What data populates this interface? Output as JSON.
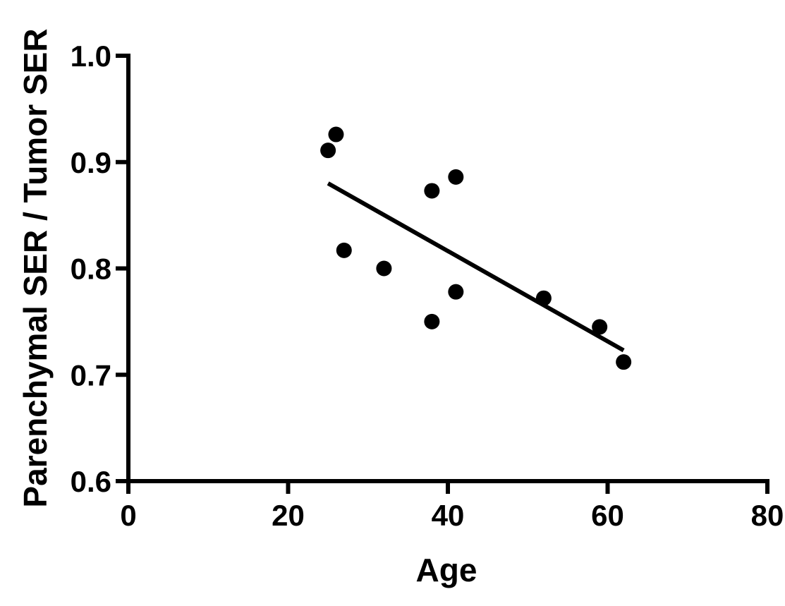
{
  "chart_data": {
    "type": "scatter",
    "title": "",
    "xlabel": "Age",
    "ylabel": "Parenchymal SER / Tumor SER",
    "xlim": [
      0,
      80
    ],
    "ylim": [
      0.6,
      1.0
    ],
    "x_ticks": [
      0,
      20,
      40,
      60,
      80
    ],
    "y_ticks": [
      0.6,
      0.7,
      0.8,
      0.9,
      1.0
    ],
    "x_tick_labels": [
      "0",
      "20",
      "40",
      "60",
      "80"
    ],
    "y_tick_labels": [
      "0.6",
      "0.7",
      "0.8",
      "0.9",
      "1.0"
    ],
    "grid": false,
    "legend": "none",
    "points": [
      {
        "x": 25,
        "y": 0.911
      },
      {
        "x": 26,
        "y": 0.926
      },
      {
        "x": 27,
        "y": 0.817
      },
      {
        "x": 32,
        "y": 0.8
      },
      {
        "x": 38,
        "y": 0.873
      },
      {
        "x": 38,
        "y": 0.75
      },
      {
        "x": 41,
        "y": 0.886
      },
      {
        "x": 41,
        "y": 0.778
      },
      {
        "x": 52,
        "y": 0.772
      },
      {
        "x": 59,
        "y": 0.745
      },
      {
        "x": 62,
        "y": 0.712
      }
    ],
    "fit_line": {
      "x": [
        25,
        62
      ],
      "y": [
        0.88,
        0.723
      ]
    },
    "colors": {
      "points": "#000000",
      "line": "#000000",
      "axes": "#000000"
    }
  }
}
